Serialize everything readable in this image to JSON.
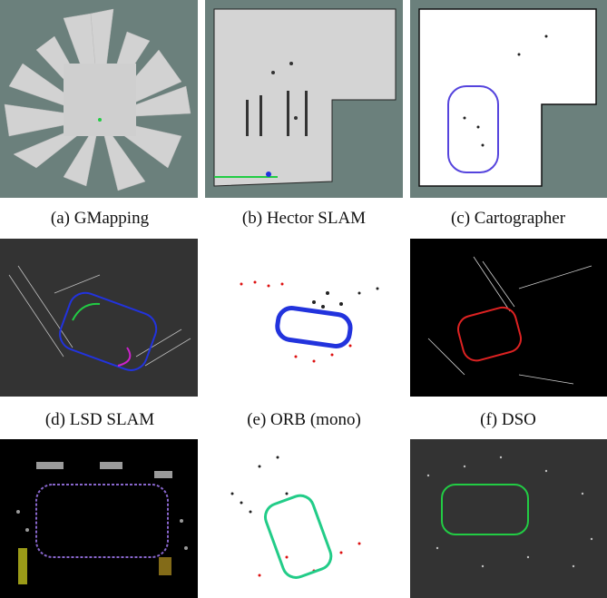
{
  "captions": {
    "a": "(a) GMapping",
    "b": "(b) Hector SLAM",
    "c": "(c) Cartographer",
    "d": "(d) LSD SLAM",
    "e": "(e) ORB (mono)",
    "f": "(f) DSO"
  },
  "colors": {
    "ros_grid_background": "#6b807c",
    "occupancy_free": "#d4d4d4",
    "dark_background": "#333333",
    "black_background": "#000000",
    "trajectory_blue": "#2233dd",
    "trajectory_red": "#dd2222",
    "trajectory_green": "#22cc44",
    "point_red": "#dd1111"
  }
}
